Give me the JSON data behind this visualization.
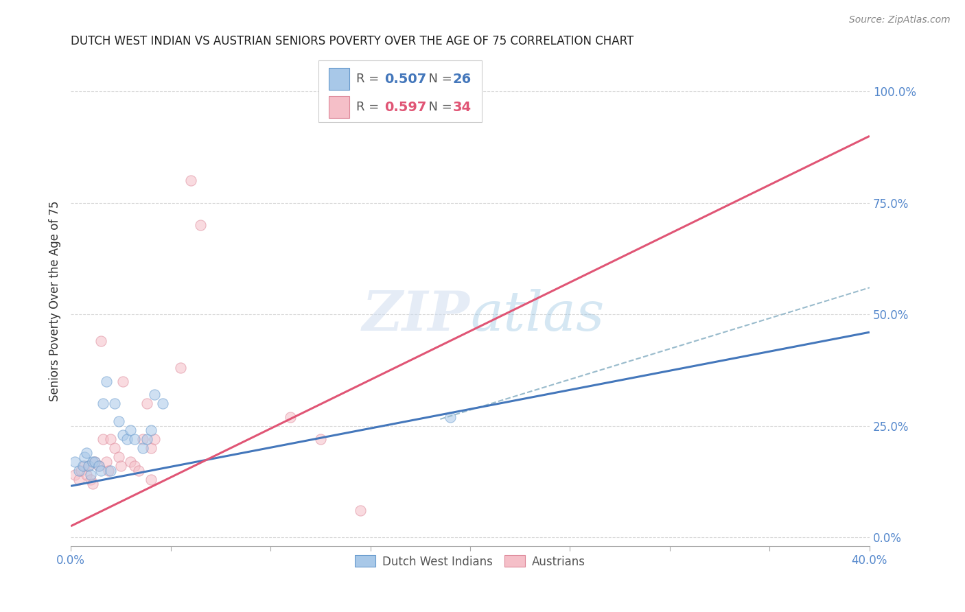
{
  "title": "DUTCH WEST INDIAN VS AUSTRIAN SENIORS POVERTY OVER THE AGE OF 75 CORRELATION CHART",
  "source": "Source: ZipAtlas.com",
  "ylabel": "Seniors Poverty Over the Age of 75",
  "xlim": [
    0.0,
    0.4
  ],
  "ylim": [
    -0.02,
    1.08
  ],
  "yticks_right": [
    0.0,
    0.25,
    0.5,
    0.75,
    1.0
  ],
  "ytick_right_labels": [
    "0.0%",
    "25.0%",
    "50.0%",
    "75.0%",
    "100.0%"
  ],
  "xtick_positions": [
    0.0,
    0.05,
    0.1,
    0.15,
    0.2,
    0.25,
    0.3,
    0.35,
    0.4
  ],
  "xtick_labels": [
    "0.0%",
    "",
    "",
    "",
    "",
    "",
    "",
    "",
    "40.0%"
  ],
  "background_color": "#ffffff",
  "grid_color": "#d8d8d8",
  "watermark": "ZIPatlas",
  "blue_scatter_x": [
    0.002,
    0.004,
    0.006,
    0.007,
    0.008,
    0.009,
    0.01,
    0.011,
    0.012,
    0.014,
    0.015,
    0.016,
    0.018,
    0.02,
    0.022,
    0.024,
    0.026,
    0.028,
    0.03,
    0.032,
    0.036,
    0.038,
    0.04,
    0.042,
    0.046,
    0.19
  ],
  "blue_scatter_y": [
    0.17,
    0.15,
    0.16,
    0.18,
    0.19,
    0.16,
    0.14,
    0.17,
    0.17,
    0.16,
    0.15,
    0.3,
    0.35,
    0.15,
    0.3,
    0.26,
    0.23,
    0.22,
    0.24,
    0.22,
    0.2,
    0.22,
    0.24,
    0.32,
    0.3,
    0.27
  ],
  "pink_scatter_x": [
    0.002,
    0.004,
    0.005,
    0.007,
    0.008,
    0.009,
    0.01,
    0.011,
    0.012,
    0.014,
    0.015,
    0.016,
    0.018,
    0.019,
    0.02,
    0.022,
    0.024,
    0.025,
    0.026,
    0.03,
    0.032,
    0.034,
    0.036,
    0.038,
    0.04,
    0.042,
    0.055,
    0.06,
    0.065,
    0.11,
    0.125,
    0.145,
    0.16,
    0.04
  ],
  "pink_scatter_y": [
    0.14,
    0.13,
    0.15,
    0.16,
    0.14,
    0.16,
    0.13,
    0.12,
    0.17,
    0.16,
    0.44,
    0.22,
    0.17,
    0.15,
    0.22,
    0.2,
    0.18,
    0.16,
    0.35,
    0.17,
    0.16,
    0.15,
    0.22,
    0.3,
    0.2,
    0.22,
    0.38,
    0.8,
    0.7,
    0.27,
    0.22,
    0.06,
    1.0,
    0.13
  ],
  "blue_line_x": [
    0.0,
    0.4
  ],
  "blue_line_y": [
    0.115,
    0.46
  ],
  "pink_line_x": [
    0.0,
    0.4
  ],
  "pink_line_y": [
    0.025,
    0.9
  ],
  "dashed_line_x": [
    0.185,
    0.4
  ],
  "dashed_line_y": [
    0.265,
    0.56
  ],
  "legend_blue_r": "0.507",
  "legend_blue_n": "26",
  "legend_pink_r": "0.597",
  "legend_pink_n": "34",
  "blue_color": "#a8c8e8",
  "blue_edge_color": "#6699cc",
  "blue_line_color": "#4477bb",
  "pink_color": "#f5bfc8",
  "pink_edge_color": "#dd8899",
  "pink_line_color": "#e05575",
  "dashed_line_color": "#99bbcc",
  "tick_label_color": "#5588cc",
  "scatter_size": 120,
  "scatter_alpha": 0.55,
  "line_width": 2.2
}
